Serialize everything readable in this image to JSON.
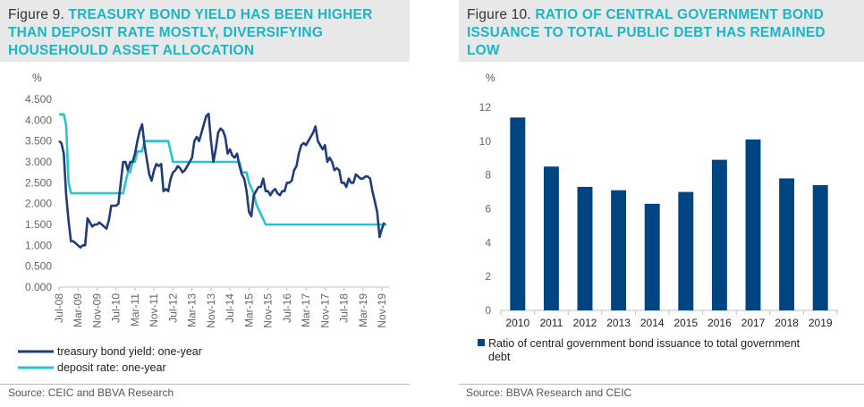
{
  "figures": [
    {
      "label": "Figure 9.",
      "title": "TREASURY BOND YIELD HAS BEEN HIGHER THAN DEPOSIT RATE MOSTLY, DIVERSIFYING HOUSEHOULD ASSET ALLOCATION",
      "title_lines": [
        "TREASURY BOND YIELD HAS BEEN HIGHER",
        "THAN DEPOSIT RATE MOSTLY, DIVERSIFYING",
        "HOUSEHOULD ASSET ALLOCATION"
      ],
      "source": "Source: CEIC and BBVA Research"
    },
    {
      "label": "Figure 10.",
      "title": "RATIO OF CENTRAL GOVERNMENT BOND ISSUANCE TO TOTAL PUBLIC DEBT HAS REMAINED LOW",
      "title_lines": [
        "RATIO OF CENTRAL GOVERNMENT BOND",
        "ISSUANCE TO TOTAL PUBLIC DEBT HAS REMAINED",
        "LOW"
      ],
      "source": "Source: BBVA Research and CEIC"
    }
  ],
  "chart_data": [
    {
      "type": "line",
      "ylabel": "%",
      "ylim": [
        0,
        4.5
      ],
      "yticks": [
        "0.000",
        "0.500",
        "1.000",
        "1.500",
        "2.000",
        "2.500",
        "3.000",
        "3.500",
        "4.000",
        "4.500"
      ],
      "x_ticks": [
        "Jul-08",
        "Mar-09",
        "Nov-09",
        "Jul-10",
        "Mar-11",
        "Nov-11",
        "Jul-12",
        "Mar-13",
        "Nov-13",
        "Jul-14",
        "Mar-15",
        "Nov-15",
        "Jul-16",
        "Mar-17",
        "Nov-17",
        "Jul-18",
        "Mar-19",
        "Nov-19"
      ],
      "x_range": [
        "2008-07",
        "2020-02"
      ],
      "legend_position": "bottom",
      "series": [
        {
          "name": "treasury bond yield: one-year",
          "color": "#1f3d7a",
          "points": [
            [
              "2008-07",
              3.5
            ],
            [
              "2008-08",
              3.45
            ],
            [
              "2008-09",
              3.2
            ],
            [
              "2008-10",
              2.2
            ],
            [
              "2008-11",
              1.6
            ],
            [
              "2008-12",
              1.1
            ],
            [
              "2009-01",
              1.1
            ],
            [
              "2009-02",
              1.05
            ],
            [
              "2009-03",
              1.0
            ],
            [
              "2009-04",
              0.95
            ],
            [
              "2009-05",
              1.0
            ],
            [
              "2009-06",
              1.0
            ],
            [
              "2009-07",
              1.65
            ],
            [
              "2009-08",
              1.55
            ],
            [
              "2009-09",
              1.45
            ],
            [
              "2009-10",
              1.5
            ],
            [
              "2009-11",
              1.5
            ],
            [
              "2009-12",
              1.55
            ],
            [
              "2010-01",
              1.5
            ],
            [
              "2010-02",
              1.45
            ],
            [
              "2010-03",
              1.4
            ],
            [
              "2010-04",
              1.6
            ],
            [
              "2010-05",
              1.95
            ],
            [
              "2010-06",
              1.95
            ],
            [
              "2010-07",
              1.95
            ],
            [
              "2010-08",
              2.0
            ],
            [
              "2010-09",
              2.5
            ],
            [
              "2010-10",
              3.0
            ],
            [
              "2010-11",
              3.0
            ],
            [
              "2010-12",
              2.8
            ],
            [
              "2011-01",
              3.0
            ],
            [
              "2011-02",
              3.0
            ],
            [
              "2011-03",
              3.2
            ],
            [
              "2011-04",
              3.5
            ],
            [
              "2011-05",
              3.75
            ],
            [
              "2011-06",
              3.9
            ],
            [
              "2011-07",
              3.4
            ],
            [
              "2011-08",
              3.05
            ],
            [
              "2011-09",
              2.7
            ],
            [
              "2011-10",
              2.55
            ],
            [
              "2011-11",
              2.8
            ],
            [
              "2011-12",
              2.95
            ],
            [
              "2012-01",
              2.9
            ],
            [
              "2012-02",
              2.95
            ],
            [
              "2012-03",
              2.3
            ],
            [
              "2012-04",
              2.35
            ],
            [
              "2012-05",
              2.3
            ],
            [
              "2012-06",
              2.6
            ],
            [
              "2012-07",
              2.75
            ],
            [
              "2012-08",
              2.8
            ],
            [
              "2012-09",
              2.9
            ],
            [
              "2012-10",
              2.85
            ],
            [
              "2012-11",
              2.75
            ],
            [
              "2012-12",
              2.8
            ],
            [
              "2013-01",
              2.9
            ],
            [
              "2013-02",
              3.0
            ],
            [
              "2013-03",
              3.1
            ],
            [
              "2013-04",
              3.5
            ],
            [
              "2013-05",
              3.6
            ],
            [
              "2013-06",
              3.5
            ],
            [
              "2013-07",
              3.7
            ],
            [
              "2013-08",
              3.9
            ],
            [
              "2013-09",
              4.1
            ],
            [
              "2013-10",
              4.15
            ],
            [
              "2013-11",
              3.5
            ],
            [
              "2013-12",
              3.0
            ],
            [
              "2014-01",
              3.3
            ],
            [
              "2014-02",
              3.7
            ],
            [
              "2014-03",
              3.8
            ],
            [
              "2014-04",
              3.75
            ],
            [
              "2014-05",
              3.6
            ],
            [
              "2014-06",
              3.2
            ],
            [
              "2014-07",
              3.3
            ],
            [
              "2014-08",
              3.15
            ],
            [
              "2014-09",
              3.1
            ],
            [
              "2014-10",
              3.2
            ],
            [
              "2014-11",
              2.9
            ],
            [
              "2014-12",
              2.7
            ],
            [
              "2015-01",
              2.6
            ],
            [
              "2015-02",
              2.3
            ],
            [
              "2015-03",
              1.8
            ],
            [
              "2015-04",
              1.7
            ],
            [
              "2015-05",
              2.2
            ],
            [
              "2015-06",
              2.3
            ],
            [
              "2015-07",
              2.4
            ],
            [
              "2015-08",
              2.4
            ],
            [
              "2015-09",
              2.6
            ],
            [
              "2015-10",
              2.3
            ],
            [
              "2015-11",
              2.3
            ],
            [
              "2015-12",
              2.2
            ],
            [
              "2016-01",
              2.3
            ],
            [
              "2016-02",
              2.35
            ],
            [
              "2016-03",
              2.25
            ],
            [
              "2016-04",
              2.2
            ],
            [
              "2016-05",
              2.3
            ],
            [
              "2016-06",
              2.3
            ],
            [
              "2016-07",
              2.5
            ],
            [
              "2016-08",
              2.5
            ],
            [
              "2016-09",
              2.55
            ],
            [
              "2016-10",
              2.8
            ],
            [
              "2016-11",
              2.9
            ],
            [
              "2016-12",
              3.2
            ],
            [
              "2017-01",
              3.4
            ],
            [
              "2017-02",
              3.45
            ],
            [
              "2017-03",
              3.4
            ],
            [
              "2017-04",
              3.5
            ],
            [
              "2017-05",
              3.6
            ],
            [
              "2017-06",
              3.7
            ],
            [
              "2017-07",
              3.85
            ],
            [
              "2017-08",
              3.5
            ],
            [
              "2017-09",
              3.4
            ],
            [
              "2017-10",
              3.3
            ],
            [
              "2017-11",
              3.4
            ],
            [
              "2017-12",
              3.0
            ],
            [
              "2018-01",
              3.1
            ],
            [
              "2018-02",
              3.0
            ],
            [
              "2018-03",
              2.8
            ],
            [
              "2018-04",
              2.85
            ],
            [
              "2018-05",
              2.8
            ],
            [
              "2018-06",
              2.5
            ],
            [
              "2018-07",
              2.5
            ],
            [
              "2018-08",
              2.4
            ],
            [
              "2018-09",
              2.6
            ],
            [
              "2018-10",
              2.5
            ],
            [
              "2018-11",
              2.5
            ],
            [
              "2018-12",
              2.7
            ],
            [
              "2019-01",
              2.65
            ],
            [
              "2019-02",
              2.6
            ],
            [
              "2019-03",
              2.6
            ],
            [
              "2019-04",
              2.65
            ],
            [
              "2019-05",
              2.65
            ],
            [
              "2019-06",
              2.6
            ],
            [
              "2019-07",
              2.3
            ],
            [
              "2019-08",
              2.05
            ],
            [
              "2019-09",
              1.8
            ],
            [
              "2019-10",
              1.2
            ],
            [
              "2019-11",
              1.4
            ],
            [
              "2019-12",
              1.55
            ]
          ]
        },
        {
          "name": "deposit rate: one-year",
          "color": "#29c4c9",
          "points": [
            [
              "2008-07",
              4.14
            ],
            [
              "2008-08",
              4.14
            ],
            [
              "2008-09",
              4.14
            ],
            [
              "2008-10",
              3.87
            ],
            [
              "2008-11",
              2.52
            ],
            [
              "2008-12",
              2.25
            ],
            [
              "2010-10",
              2.25
            ],
            [
              "2010-11",
              2.5
            ],
            [
              "2010-12",
              2.75
            ],
            [
              "2011-01",
              2.75
            ],
            [
              "2011-02",
              3.0
            ],
            [
              "2011-03",
              3.0
            ],
            [
              "2011-04",
              3.25
            ],
            [
              "2011-05",
              3.25
            ],
            [
              "2011-06",
              3.25
            ],
            [
              "2011-07",
              3.5
            ],
            [
              "2012-05",
              3.5
            ],
            [
              "2012-06",
              3.25
            ],
            [
              "2012-07",
              3.0
            ],
            [
              "2014-11",
              3.0
            ],
            [
              "2014-12",
              2.75
            ],
            [
              "2015-02",
              2.75
            ],
            [
              "2015-03",
              2.5
            ],
            [
              "2015-05",
              2.25
            ],
            [
              "2015-06",
              2.0
            ],
            [
              "2015-08",
              1.75
            ],
            [
              "2015-10",
              1.5
            ],
            [
              "2020-01",
              1.5
            ]
          ]
        }
      ]
    },
    {
      "type": "bar",
      "ylabel": "%",
      "ylim": [
        0,
        12
      ],
      "yticks": [
        "0",
        "2",
        "4",
        "6",
        "8",
        "10",
        "12"
      ],
      "categories": [
        "2010",
        "2011",
        "2012",
        "2013",
        "2014",
        "2015",
        "2016",
        "2017",
        "2018",
        "2019"
      ],
      "series": [
        {
          "name": "Ratio of central government bond issuance to total government debt",
          "name_lines": [
            "Ratio of central government bond issuance to total government",
            "debt"
          ],
          "color": "#004481",
          "values": [
            11.4,
            8.5,
            7.3,
            7.1,
            6.3,
            7.0,
            8.9,
            10.1,
            7.8,
            7.4
          ]
        }
      ]
    }
  ]
}
